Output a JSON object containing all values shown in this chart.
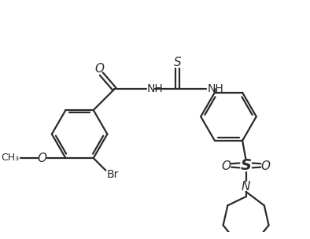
{
  "background_color": "#ffffff",
  "line_color": "#2a2a2a",
  "line_width": 1.6,
  "font_size": 10,
  "dpi": 100,
  "figsize": [
    3.94,
    3.04
  ],
  "xlim": [
    0,
    10
  ],
  "ylim": [
    0,
    7.7
  ]
}
